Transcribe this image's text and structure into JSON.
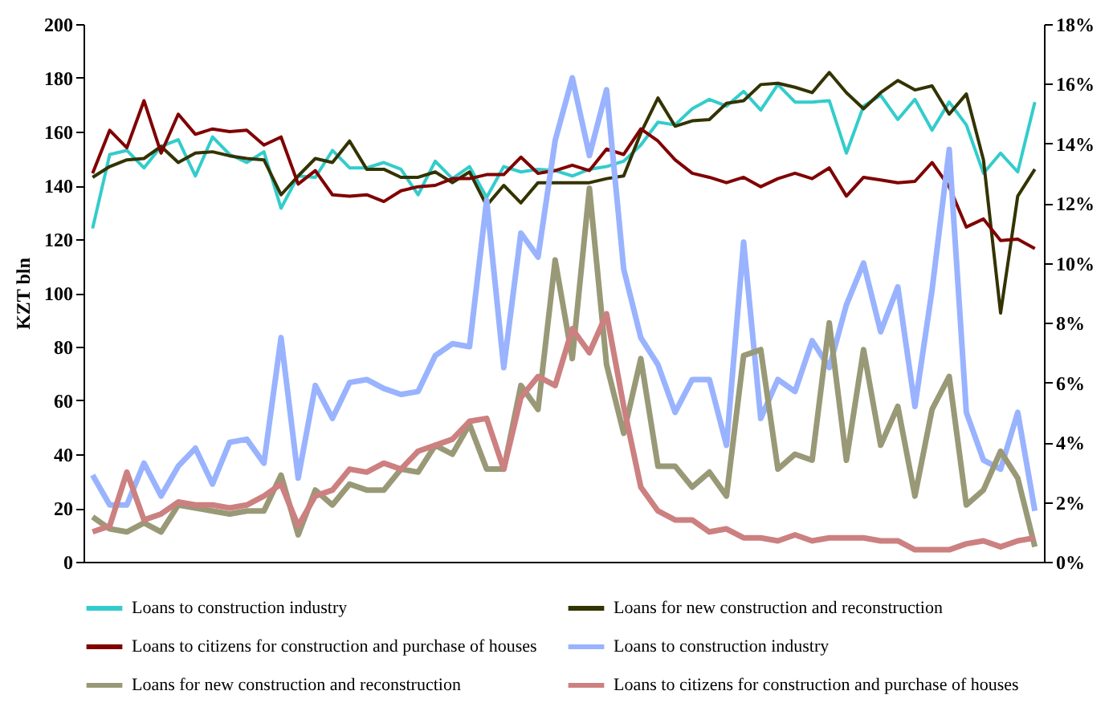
{
  "chart_data": {
    "type": "line",
    "ylabel": "KZT bln",
    "categories": [
      null,
      null,
      null,
      null,
      null,
      null,
      null,
      null,
      null,
      null,
      null,
      null,
      null,
      null,
      null,
      null,
      null,
      null,
      null,
      null,
      null,
      null,
      null,
      null,
      null,
      null,
      null,
      null,
      null,
      null,
      null,
      null,
      null,
      null,
      null,
      null,
      null,
      null,
      null,
      null,
      null,
      null,
      null,
      null,
      null,
      null,
      null,
      null,
      null,
      null,
      null,
      null,
      null,
      null,
      null,
      null
    ],
    "ylim": [
      0,
      200
    ],
    "yticks": [
      0,
      20,
      40,
      60,
      80,
      100,
      120,
      140,
      160,
      180,
      200
    ],
    "y2lim": [
      0,
      18
    ],
    "y2ticks": [
      {
        "value": 0,
        "label": "0%"
      },
      {
        "value": 2,
        "label": "2%"
      },
      {
        "value": 4,
        "label": "4%"
      },
      {
        "value": 6,
        "label": "6%"
      },
      {
        "value": 8,
        "label": "8%"
      },
      {
        "value": 10,
        "label": "10%"
      },
      {
        "value": 12,
        "label": "12%"
      },
      {
        "value": 14,
        "label": "14%"
      },
      {
        "value": 16,
        "label": "16%"
      },
      {
        "value": 18,
        "label": "18%"
      }
    ],
    "legend": "bottom",
    "line_style": "solid",
    "marker": "none",
    "series": [
      {
        "name": "Loans to construction industry",
        "color": "#33cccc",
        "values": [
          124,
          151.5,
          153,
          146.5,
          154.5,
          157,
          143.5,
          158,
          151.5,
          148.5,
          152.5,
          131.5,
          143.5,
          143,
          153,
          146.5,
          146.5,
          148.5,
          146,
          136.5,
          149,
          142.5,
          147,
          135.5,
          147,
          145,
          146,
          145.5,
          143.5,
          146,
          147,
          149,
          155,
          163.5,
          162.5,
          168.5,
          172,
          169.5,
          175,
          168,
          177.5,
          171,
          171,
          171.5,
          152,
          169.5,
          173.5,
          164.5,
          172,
          160.5,
          171,
          162.5,
          144.5,
          152,
          145,
          171
        ]
      },
      {
        "name": "Loans for new construction and reconstruction",
        "color": "#333300",
        "values": [
          143,
          147,
          149.5,
          150,
          154.5,
          148.5,
          152,
          152.5,
          151,
          150,
          149.5,
          136.5,
          143.5,
          150,
          148.5,
          156.5,
          146,
          146,
          143,
          143,
          145,
          141,
          145,
          132.5,
          140,
          133.5,
          141,
          141,
          141,
          141,
          142.5,
          143.5,
          159.5,
          172.5,
          162,
          164,
          164.5,
          170.5,
          171.5,
          177.5,
          178,
          176.5,
          174.5,
          182,
          174.5,
          168.5,
          174.5,
          179,
          175.5,
          177,
          166.5,
          174,
          149.5,
          92.5,
          136,
          146
        ]
      },
      {
        "name": "Loans to citizens for construction and purchase of houses",
        "color": "#800000",
        "values": [
          144.5,
          160.5,
          154,
          171.5,
          152,
          166.5,
          159,
          161,
          160,
          160.5,
          155,
          158,
          140.5,
          145.5,
          136.5,
          136,
          136.5,
          134,
          138,
          139.5,
          140,
          142.5,
          142.5,
          144,
          144,
          150.5,
          144.5,
          145.5,
          147.5,
          145.5,
          153.5,
          151.5,
          161,
          156.5,
          149.5,
          144.5,
          143,
          141,
          143,
          139.5,
          142.5,
          144.5,
          142.5,
          146.5,
          136,
          143,
          142,
          141,
          141.5,
          148.5,
          139.5,
          124.5,
          127.5,
          119.5,
          120,
          116.5
        ]
      },
      {
        "name": "Loans to construction industry",
        "color": "#99b3ff",
        "axis": "y2",
        "values": [
          2.9,
          1.9,
          1.9,
          3.3,
          2.2,
          3.2,
          3.8,
          2.6,
          4.0,
          4.1,
          3.3,
          7.5,
          2.8,
          5.9,
          4.8,
          6.0,
          6.1,
          5.8,
          5.6,
          5.7,
          6.9,
          7.3,
          7.2,
          12.1,
          6.5,
          11.0,
          10.2,
          14.1,
          16.2,
          13.6,
          15.8,
          9.8,
          7.5,
          6.6,
          5.0,
          6.1,
          6.1,
          3.9,
          10.7,
          4.8,
          6.1,
          5.7,
          7.4,
          6.5,
          8.6,
          10.0,
          7.7,
          9.2,
          5.2,
          9.1,
          13.8,
          5.0,
          3.4,
          3.1,
          5.0,
          1.7
        ]
      },
      {
        "name": "Loans for new construction and reconstruction",
        "color": "#999977",
        "axis": "y2",
        "values": [
          1.5,
          1.1,
          1.0,
          1.3,
          1.0,
          1.9,
          1.8,
          1.7,
          1.6,
          1.7,
          1.7,
          2.9,
          0.9,
          2.4,
          1.9,
          2.6,
          2.4,
          2.4,
          3.1,
          3.0,
          3.9,
          3.6,
          4.6,
          3.1,
          3.1,
          5.9,
          5.1,
          10.1,
          6.8,
          12.5,
          6.6,
          4.3,
          6.8,
          3.2,
          3.2,
          2.5,
          3.0,
          2.2,
          6.9,
          7.1,
          3.1,
          3.6,
          3.4,
          8.0,
          3.4,
          7.1,
          3.9,
          5.2,
          2.2,
          5.1,
          6.2,
          1.9,
          2.4,
          3.7,
          2.8,
          0.5
        ]
      },
      {
        "name": "Loans to citizens for construction and purchase of houses",
        "color": "#cc8080",
        "axis": "y2",
        "values": [
          1.0,
          1.2,
          3.0,
          1.4,
          1.6,
          2.0,
          1.9,
          1.9,
          1.8,
          1.9,
          2.2,
          2.6,
          1.2,
          2.2,
          2.4,
          3.1,
          3.0,
          3.3,
          3.1,
          3.7,
          3.9,
          4.1,
          4.7,
          4.8,
          3.1,
          5.5,
          6.2,
          5.9,
          7.8,
          7.0,
          8.3,
          5.2,
          2.5,
          1.7,
          1.4,
          1.4,
          1.0,
          1.1,
          0.8,
          0.8,
          0.7,
          0.9,
          0.7,
          0.8,
          0.8,
          0.8,
          0.7,
          0.7,
          0.4,
          0.4,
          0.4,
          0.6,
          0.7,
          0.5,
          0.7,
          0.8
        ]
      }
    ]
  }
}
